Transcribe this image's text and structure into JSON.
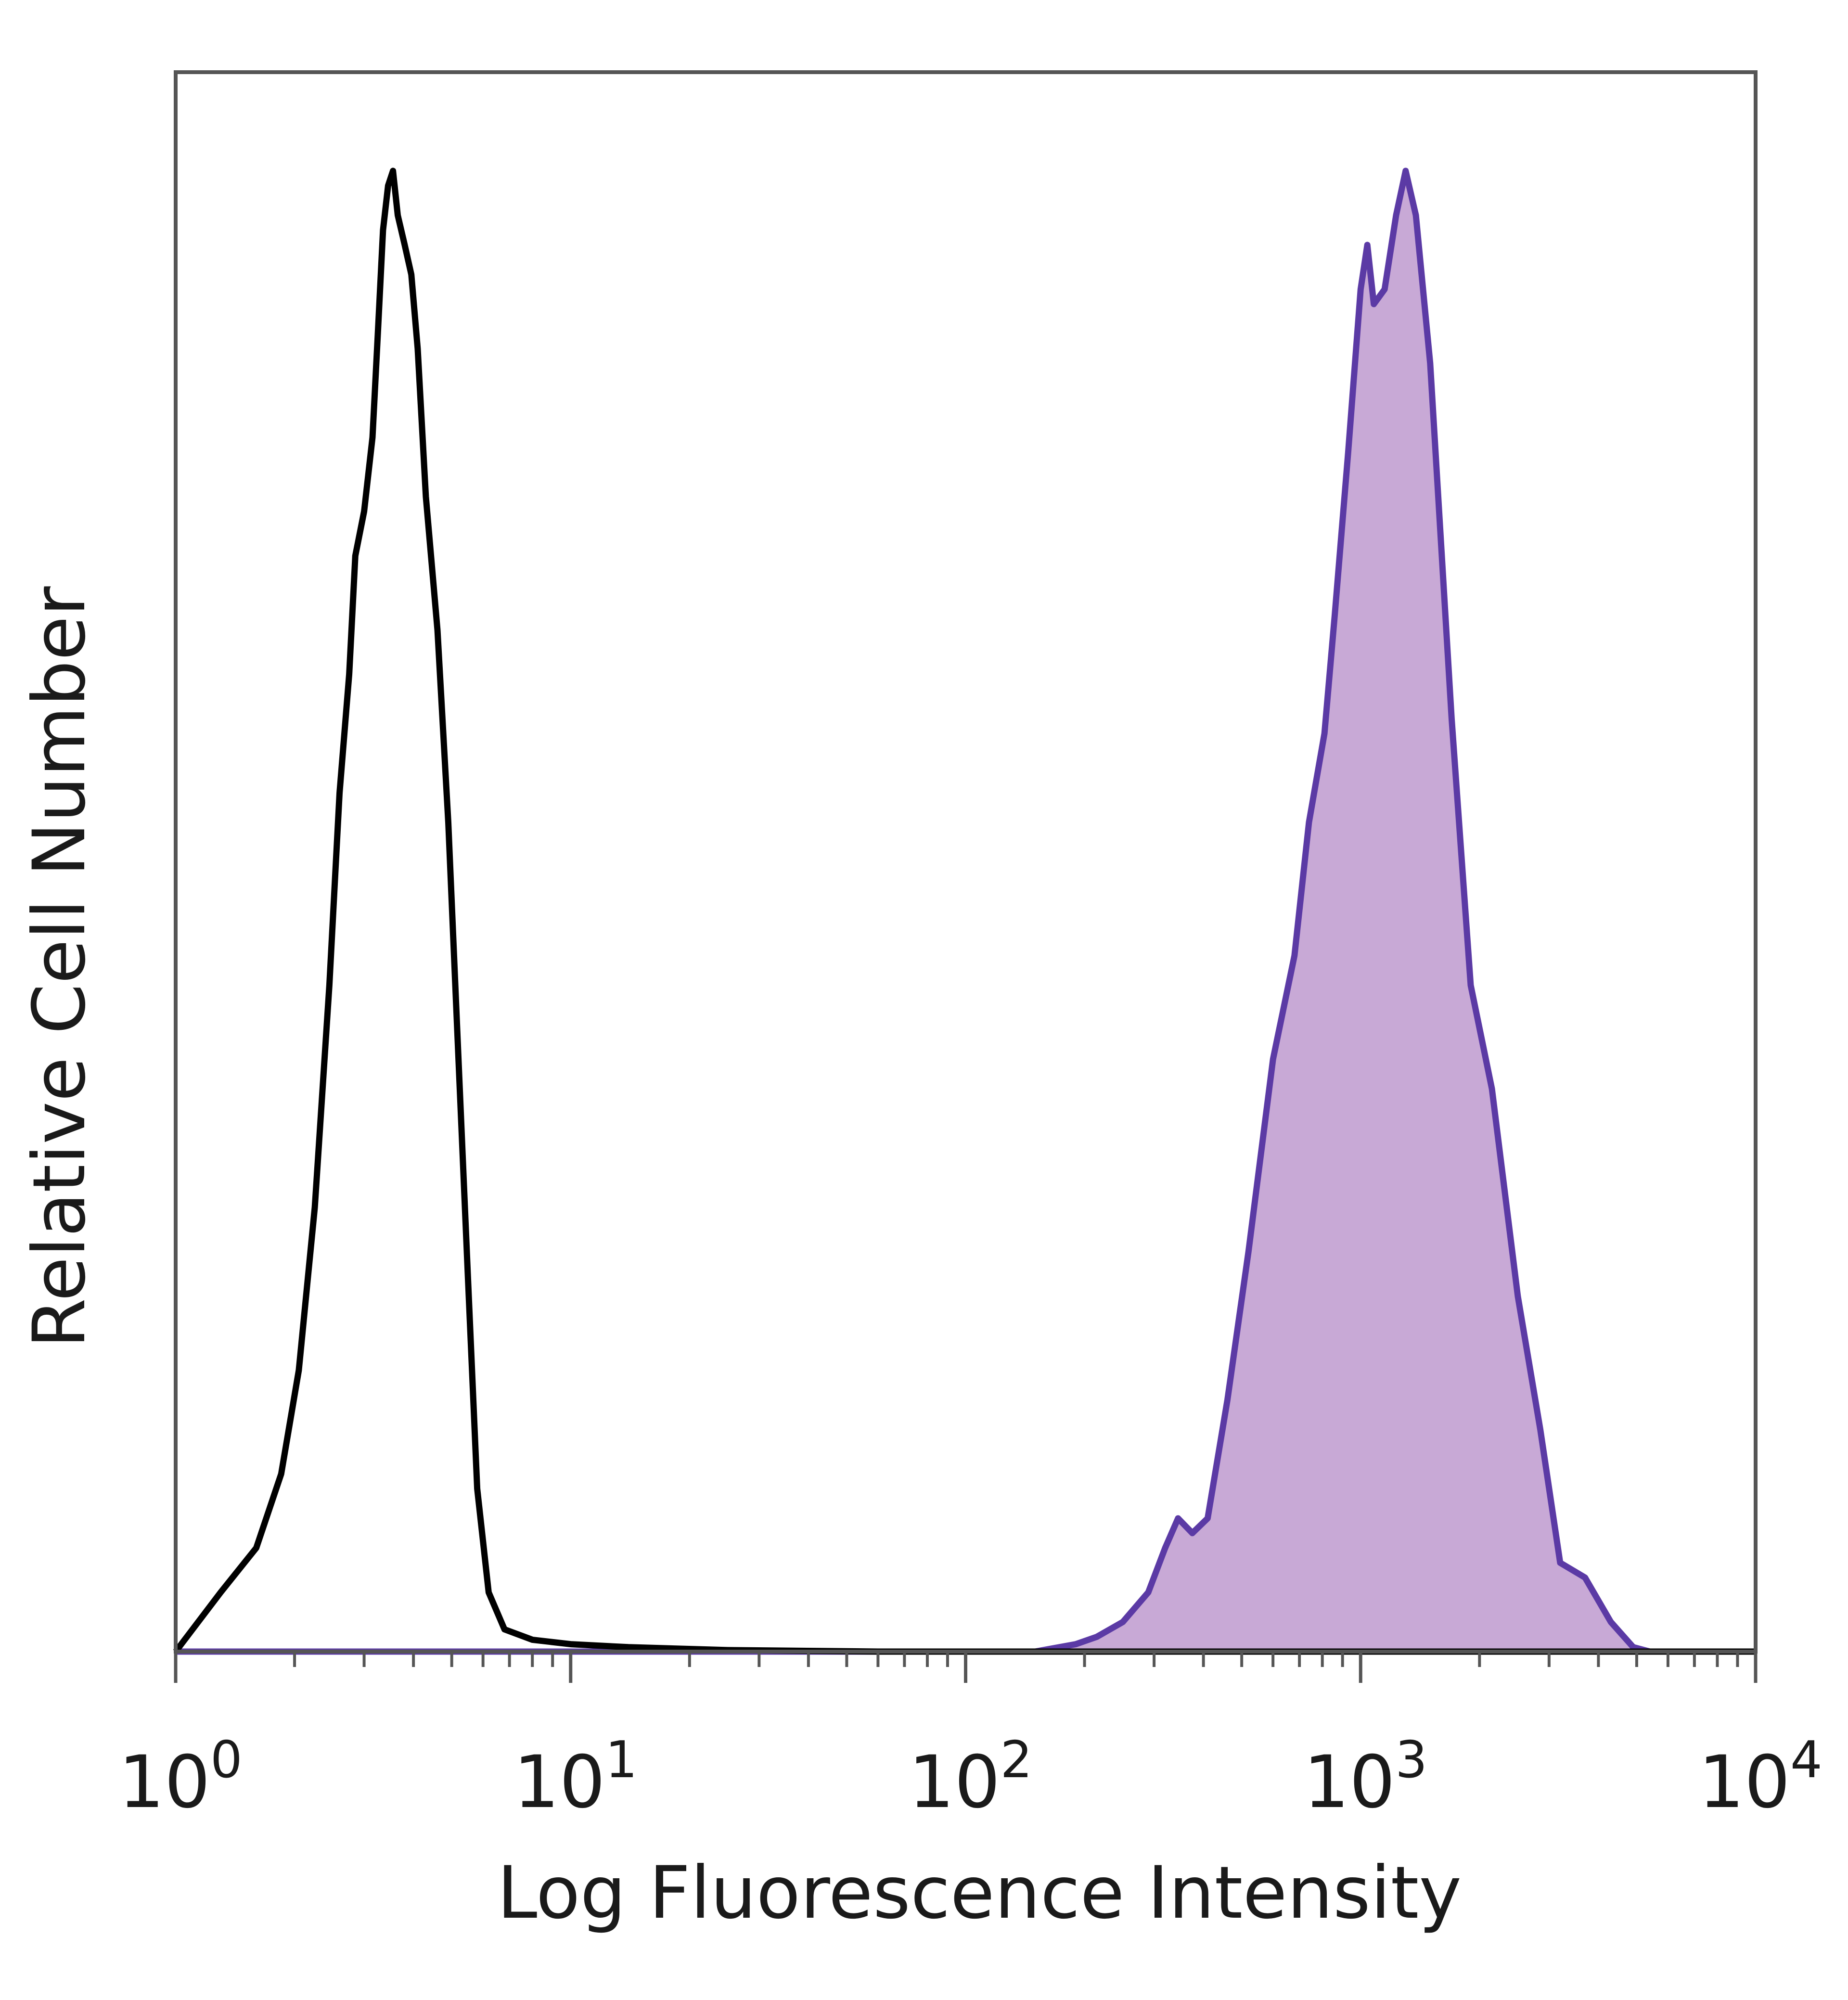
{
  "chart_data": {
    "type": "area",
    "title": "",
    "xlabel": "Log Fluorescence Intensity",
    "ylabel": "Relative Cell Number",
    "x_scale": "log",
    "xlim": [
      1,
      10000
    ],
    "ylim": [
      0,
      1
    ],
    "x_ticks": [
      {
        "value": 1,
        "base": "10",
        "exp": "0"
      },
      {
        "value": 10,
        "base": "10",
        "exp": "1"
      },
      {
        "value": 100,
        "base": "10",
        "exp": "2"
      },
      {
        "value": 1000,
        "base": "10",
        "exp": "3"
      },
      {
        "value": 10000,
        "base": "10",
        "exp": "4"
      }
    ],
    "grid": false,
    "legend": "none",
    "colors": {
      "control_line": "#000000",
      "stained_line": "#5b3aa5",
      "stained_fill": "#c8a9d6",
      "frame": "#555555"
    },
    "series": [
      {
        "style": "outline",
        "points": [
          [
            1.0,
            0.0
          ],
          [
            1.3,
            0.04
          ],
          [
            1.6,
            0.07
          ],
          [
            1.85,
            0.12
          ],
          [
            2.05,
            0.19
          ],
          [
            2.25,
            0.3
          ],
          [
            2.45,
            0.45
          ],
          [
            2.6,
            0.58
          ],
          [
            2.75,
            0.66
          ],
          [
            2.85,
            0.74
          ],
          [
            3.0,
            0.77
          ],
          [
            3.15,
            0.82
          ],
          [
            3.25,
            0.89
          ],
          [
            3.35,
            0.96
          ],
          [
            3.45,
            0.99
          ],
          [
            3.55,
            1.0
          ],
          [
            3.65,
            0.97
          ],
          [
            3.8,
            0.95
          ],
          [
            3.95,
            0.93
          ],
          [
            4.1,
            0.88
          ],
          [
            4.3,
            0.78
          ],
          [
            4.6,
            0.69
          ],
          [
            4.9,
            0.56
          ],
          [
            5.2,
            0.4
          ],
          [
            5.5,
            0.25
          ],
          [
            5.8,
            0.11
          ],
          [
            6.2,
            0.04
          ],
          [
            6.8,
            0.015
          ],
          [
            8.0,
            0.008
          ],
          [
            10.0,
            0.005
          ],
          [
            14.0,
            0.003
          ],
          [
            25.0,
            0.001
          ],
          [
            60.0,
            0.0
          ],
          [
            10000.0,
            0.0
          ]
        ]
      },
      {
        "style": "filled",
        "points": [
          [
            1.0,
            0.0
          ],
          [
            150.0,
            0.0
          ],
          [
            190.0,
            0.005
          ],
          [
            215.0,
            0.01
          ],
          [
            250.0,
            0.02
          ],
          [
            290.0,
            0.04
          ],
          [
            320.0,
            0.07
          ],
          [
            345.0,
            0.09
          ],
          [
            375.0,
            0.08
          ],
          [
            410.0,
            0.09
          ],
          [
            460.0,
            0.17
          ],
          [
            520.0,
            0.27
          ],
          [
            600.0,
            0.4
          ],
          [
            680.0,
            0.47
          ],
          [
            740.0,
            0.56
          ],
          [
            810.0,
            0.62
          ],
          [
            860.0,
            0.7
          ],
          [
            930.0,
            0.81
          ],
          [
            1000.0,
            0.92
          ],
          [
            1040.0,
            0.95
          ],
          [
            1080.0,
            0.91
          ],
          [
            1150.0,
            0.92
          ],
          [
            1230.0,
            0.97
          ],
          [
            1300.0,
            1.0
          ],
          [
            1380.0,
            0.97
          ],
          [
            1500.0,
            0.87
          ],
          [
            1700.0,
            0.63
          ],
          [
            1900.0,
            0.45
          ],
          [
            2150.0,
            0.38
          ],
          [
            2500.0,
            0.24
          ],
          [
            2850.0,
            0.15
          ],
          [
            3200.0,
            0.06
          ],
          [
            3700.0,
            0.05
          ],
          [
            4300.0,
            0.02
          ],
          [
            4900.0,
            0.003
          ],
          [
            5400.0,
            0.0
          ],
          [
            10000.0,
            0.0
          ]
        ]
      }
    ]
  }
}
